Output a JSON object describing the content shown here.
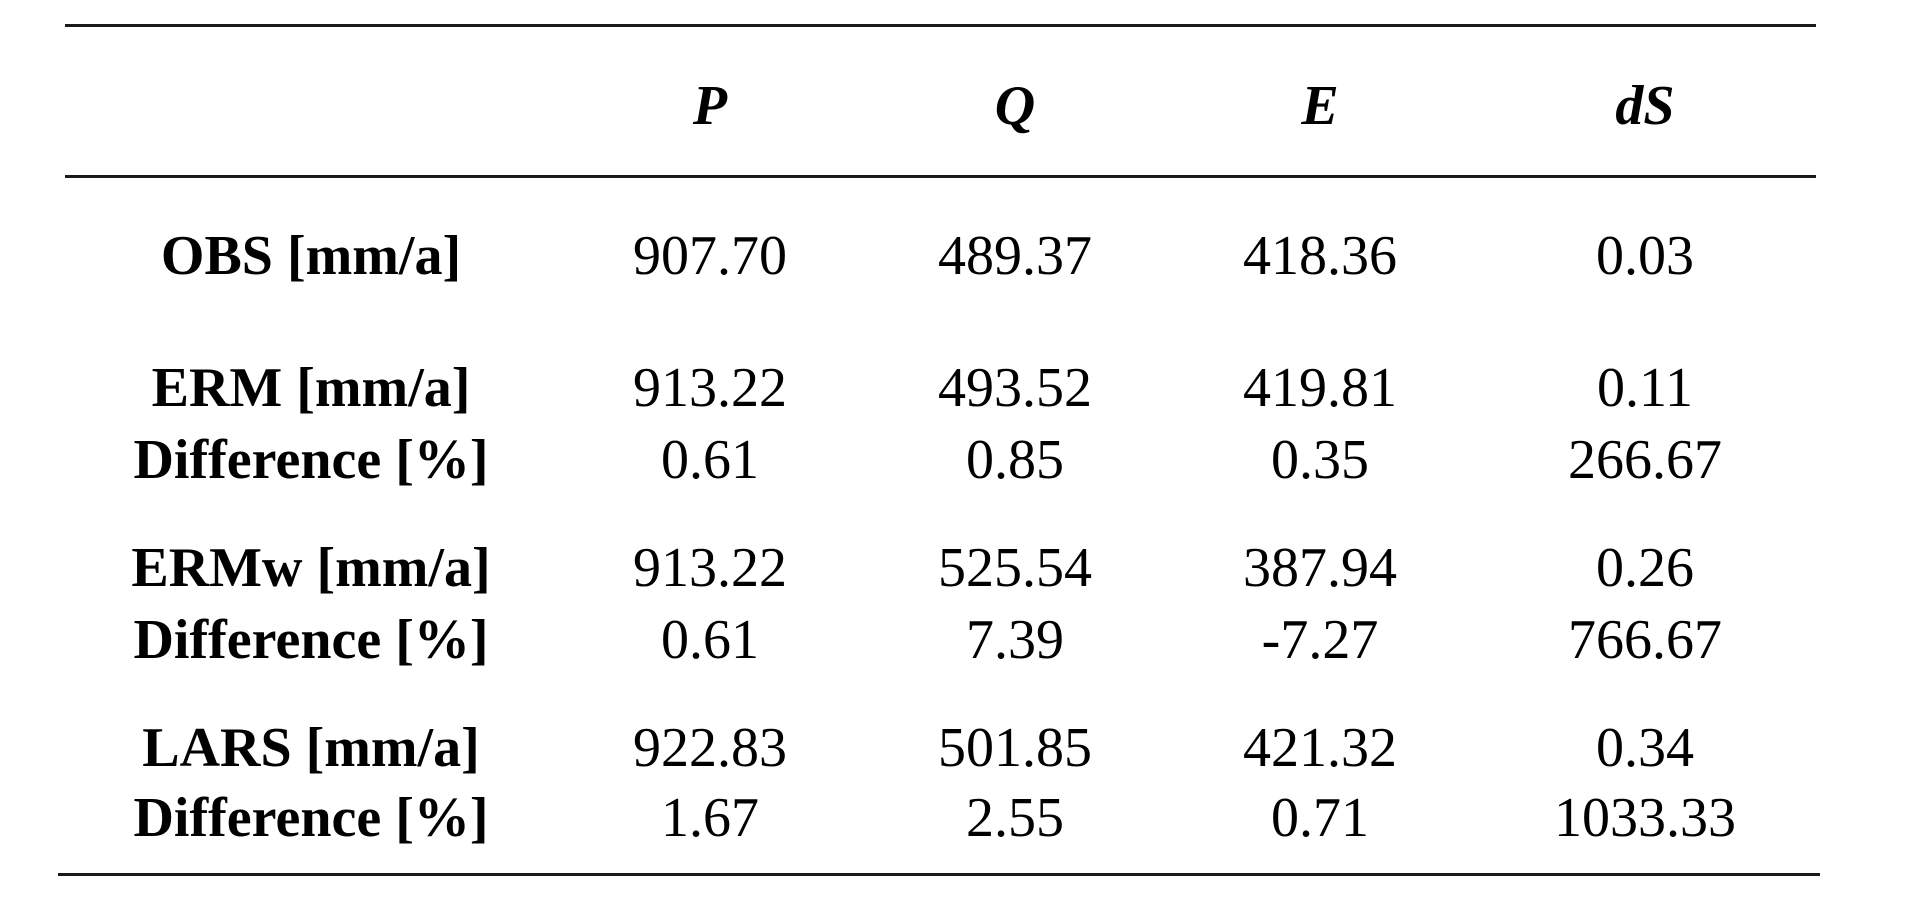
{
  "table": {
    "columns": [
      "",
      "P",
      "Q",
      "E",
      "dS"
    ],
    "rows": [
      {
        "label": "OBS [mm/a]",
        "values": [
          "907.70",
          "489.37",
          "418.36",
          "0.03"
        ]
      },
      {
        "label": "ERM [mm/a]",
        "values": [
          "913.22",
          "493.52",
          "419.81",
          "0.11"
        ]
      },
      {
        "label": "Difference [%]",
        "values": [
          "0.61",
          "0.85",
          "0.35",
          "266.67"
        ]
      },
      {
        "label": "ERMw [mm/a]",
        "values": [
          "913.22",
          "525.54",
          "387.94",
          "0.26"
        ]
      },
      {
        "label": "Difference [%]",
        "values": [
          "0.61",
          "7.39",
          "-7.27",
          "766.67"
        ]
      },
      {
        "label": "LARS [mm/a]",
        "values": [
          "922.83",
          "501.85",
          "421.32",
          "0.34"
        ]
      },
      {
        "label": "Difference [%]",
        "values": [
          "1.67",
          "2.55",
          "0.71",
          "1033.33"
        ]
      }
    ]
  }
}
